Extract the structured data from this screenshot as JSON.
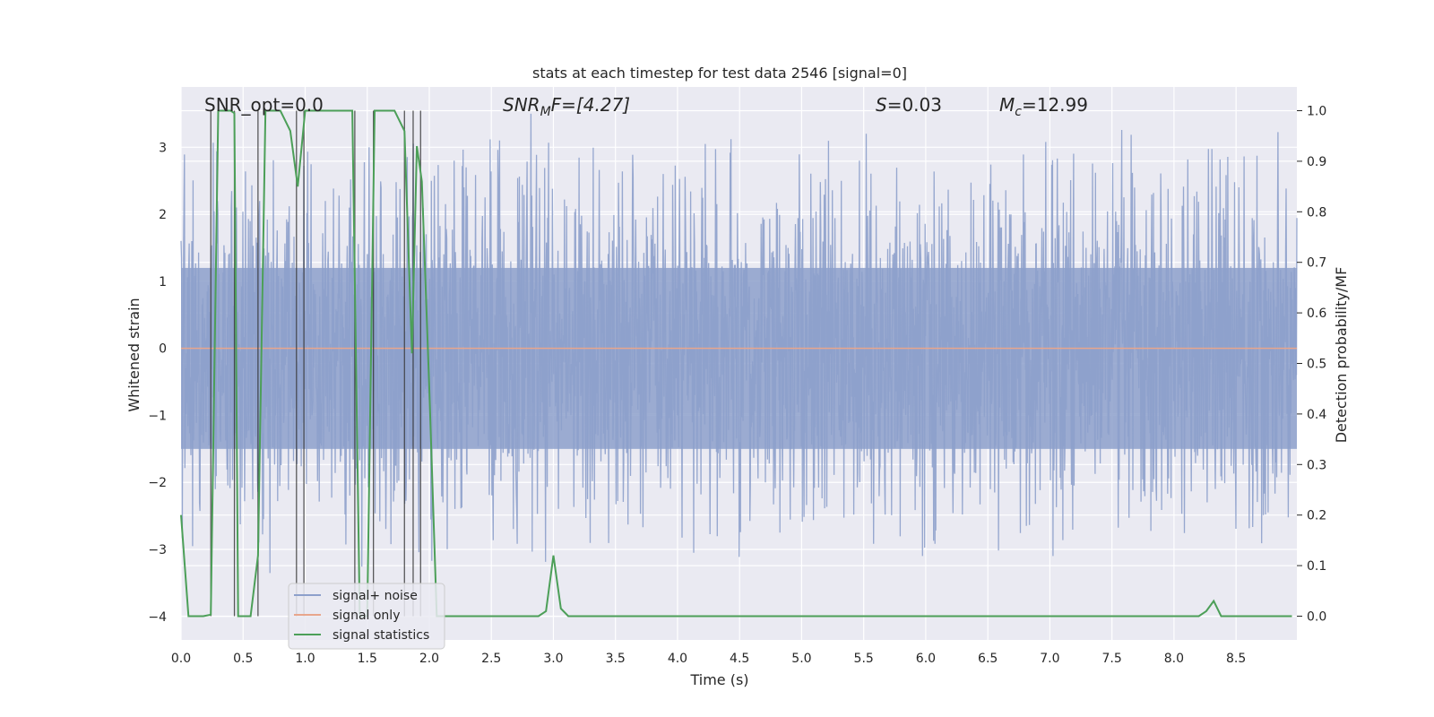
{
  "chart_data": {
    "type": "line",
    "title": "stats at each timestep for test data 2546 [signal=0]",
    "xlabel": "Time (s)",
    "ylabel": "Whitened strain",
    "y2label": "Detection probability/MF",
    "xlim": [
      0,
      8.99
    ],
    "ylim": [
      -4.35,
      3.9
    ],
    "y2lim": [
      -0.047,
      1.047
    ],
    "x_ticks": [
      0.0,
      0.5,
      1.0,
      1.5,
      2.0,
      2.5,
      3.0,
      3.5,
      4.0,
      4.5,
      5.0,
      5.5,
      6.0,
      6.5,
      7.0,
      7.5,
      8.0,
      8.5
    ],
    "x_tick_labels": [
      "0.0",
      "0.5",
      "1.0",
      "1.5",
      "2.0",
      "2.5",
      "3.0",
      "3.5",
      "4.0",
      "4.5",
      "5.0",
      "5.5",
      "6.0",
      "6.5",
      "7.0",
      "7.5",
      "8.0",
      "8.5"
    ],
    "y_ticks": [
      -4,
      -3,
      -2,
      -1,
      0,
      1,
      2,
      3
    ],
    "y_tick_labels": [
      "−4",
      "−3",
      "−2",
      "−1",
      "0",
      "1",
      "2",
      "3"
    ],
    "y2_ticks": [
      0.0,
      0.1,
      0.2,
      0.3,
      0.4,
      0.5,
      0.6,
      0.7,
      0.8,
      0.9,
      1.0
    ],
    "y2_tick_labels": [
      "0.0",
      "0.1",
      "0.2",
      "0.3",
      "0.4",
      "0.5",
      "0.6",
      "0.7",
      "0.8",
      "0.9",
      "1.0"
    ],
    "grid": true,
    "legend_placement": "lower-left",
    "annotations": {
      "snr_opt": "SNR_opt=0.0",
      "snr_mf_main": "SNR",
      "snr_mf_sub": "M",
      "snr_mf_rest": "F=[4.27]",
      "s_main": "S",
      "s_rest": "=0.03",
      "mc_main": "M",
      "mc_sub": "c",
      "mc_rest": "=12.99"
    },
    "series": [
      {
        "name": "signal+ noise",
        "color": "#8da0cb",
        "noise_envelope": {
          "typical_abs": 1.2,
          "extreme_max": 3.5,
          "extreme_min": -4.0
        }
      },
      {
        "name": "signal only",
        "color": "#e8a68c",
        "x": [
          0.0,
          8.99
        ],
        "y": [
          0.0,
          0.0
        ]
      },
      {
        "name": "signal statistics",
        "color": "#4c9f58",
        "x": [
          0.0,
          0.06,
          0.18,
          0.24,
          0.3,
          0.4,
          0.43,
          0.46,
          0.5,
          0.56,
          0.62,
          0.68,
          0.74,
          0.8,
          0.88,
          0.94,
          1.0,
          1.06,
          1.12,
          1.2,
          1.3,
          1.38,
          1.44,
          1.5,
          1.56,
          1.62,
          1.72,
          1.8,
          1.86,
          1.9,
          1.94,
          2.0,
          2.06,
          2.1,
          2.2,
          2.6,
          2.88,
          2.94,
          3.0,
          3.06,
          3.12,
          3.2,
          4.0,
          5.0,
          6.0,
          7.0,
          8.0,
          8.2,
          8.26,
          8.32,
          8.38,
          8.5,
          8.95
        ],
        "y": [
          0.2,
          0.0,
          0.0,
          0.003,
          1.0,
          1.0,
          0.995,
          0.0,
          0.0,
          0.0,
          0.12,
          1.0,
          1.0,
          1.0,
          0.96,
          0.85,
          1.0,
          1.0,
          1.0,
          1.0,
          1.0,
          1.0,
          0.0,
          0.0,
          1.0,
          1.0,
          1.0,
          0.96,
          0.52,
          0.93,
          0.86,
          0.45,
          0.0,
          0.0,
          0.0,
          0.0,
          0.0,
          0.01,
          0.12,
          0.015,
          0.0,
          0.0,
          0.0,
          0.0,
          0.0,
          0.0,
          0.0,
          0.0,
          0.01,
          0.03,
          0.0,
          0.0,
          0.0
        ]
      }
    ],
    "mf_trigger_times": [
      0.24,
      0.43,
      0.62,
      0.93,
      0.99,
      1.4,
      1.55,
      1.8,
      1.87,
      1.93
    ]
  }
}
